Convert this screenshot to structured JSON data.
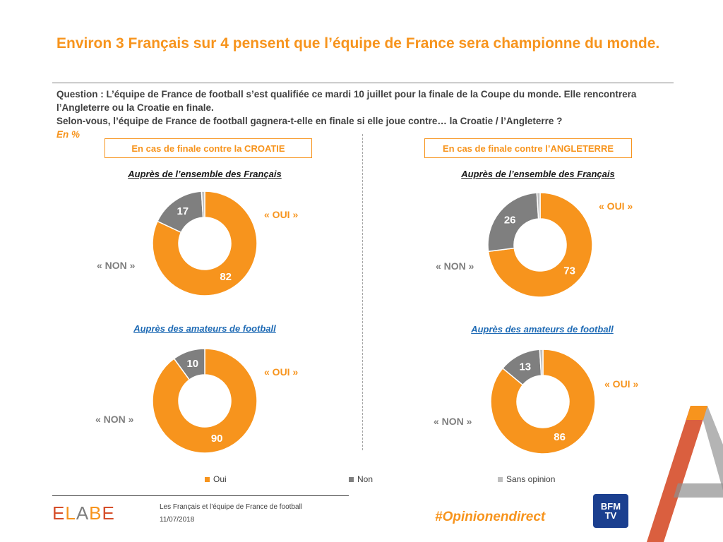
{
  "title": "Environ 3 Français sur 4 pensent que l’équipe de France sera championne du monde.",
  "question": {
    "line1": "Question : L’équipe de France de football s’est qualifiée ce mardi 10 juillet pour la finale de la Coupe du monde. Elle rencontrera",
    "line2": "l’Angleterre ou la Croatie en finale.",
    "line3": "Selon-vous, l’équipe de France de football gagnera-t-elle en finale si elle joue contre… la Croatie / l’Angleterre ?",
    "unit": "En %"
  },
  "panels": {
    "left": {
      "header": "En cas de finale contre la CROATIE"
    },
    "right": {
      "header": "En cas de finale contre l’ANGLETERRE"
    }
  },
  "labels": {
    "oui": "« OUI »",
    "non": "« NON »"
  },
  "legend": {
    "oui": "Oui",
    "non": "Non",
    "sans_opinion": "Sans opinion"
  },
  "colors": {
    "oui": "#F7941D",
    "non": "#7F7F7F",
    "sans_opinion": "#BFBFBF"
  },
  "chart_data": [
    {
      "type": "pie",
      "title": "Auprès de l’ensemble des Français",
      "categories": [
        "Oui",
        "Non",
        "Sans opinion"
      ],
      "values": [
        82,
        17,
        1
      ]
    },
    {
      "type": "pie",
      "title": "Auprès des amateurs de football",
      "categories": [
        "Oui",
        "Non",
        "Sans opinion"
      ],
      "values": [
        90,
        10,
        0
      ]
    },
    {
      "type": "pie",
      "title": "Auprès de l’ensemble des Français",
      "categories": [
        "Oui",
        "Non",
        "Sans opinion"
      ],
      "values": [
        73,
        26,
        1
      ]
    },
    {
      "type": "pie",
      "title": "Auprès des amateurs de football",
      "categories": [
        "Oui",
        "Non",
        "Sans opinion"
      ],
      "values": [
        86,
        13,
        1
      ]
    }
  ],
  "footer": {
    "logo": "ELABE",
    "source": "Les Français et l'équipe de France de football",
    "date": "11/07/2018",
    "hashtag": "#Opinionendirect",
    "bfm_line1": "BFM",
    "bfm_line2": "TV"
  }
}
